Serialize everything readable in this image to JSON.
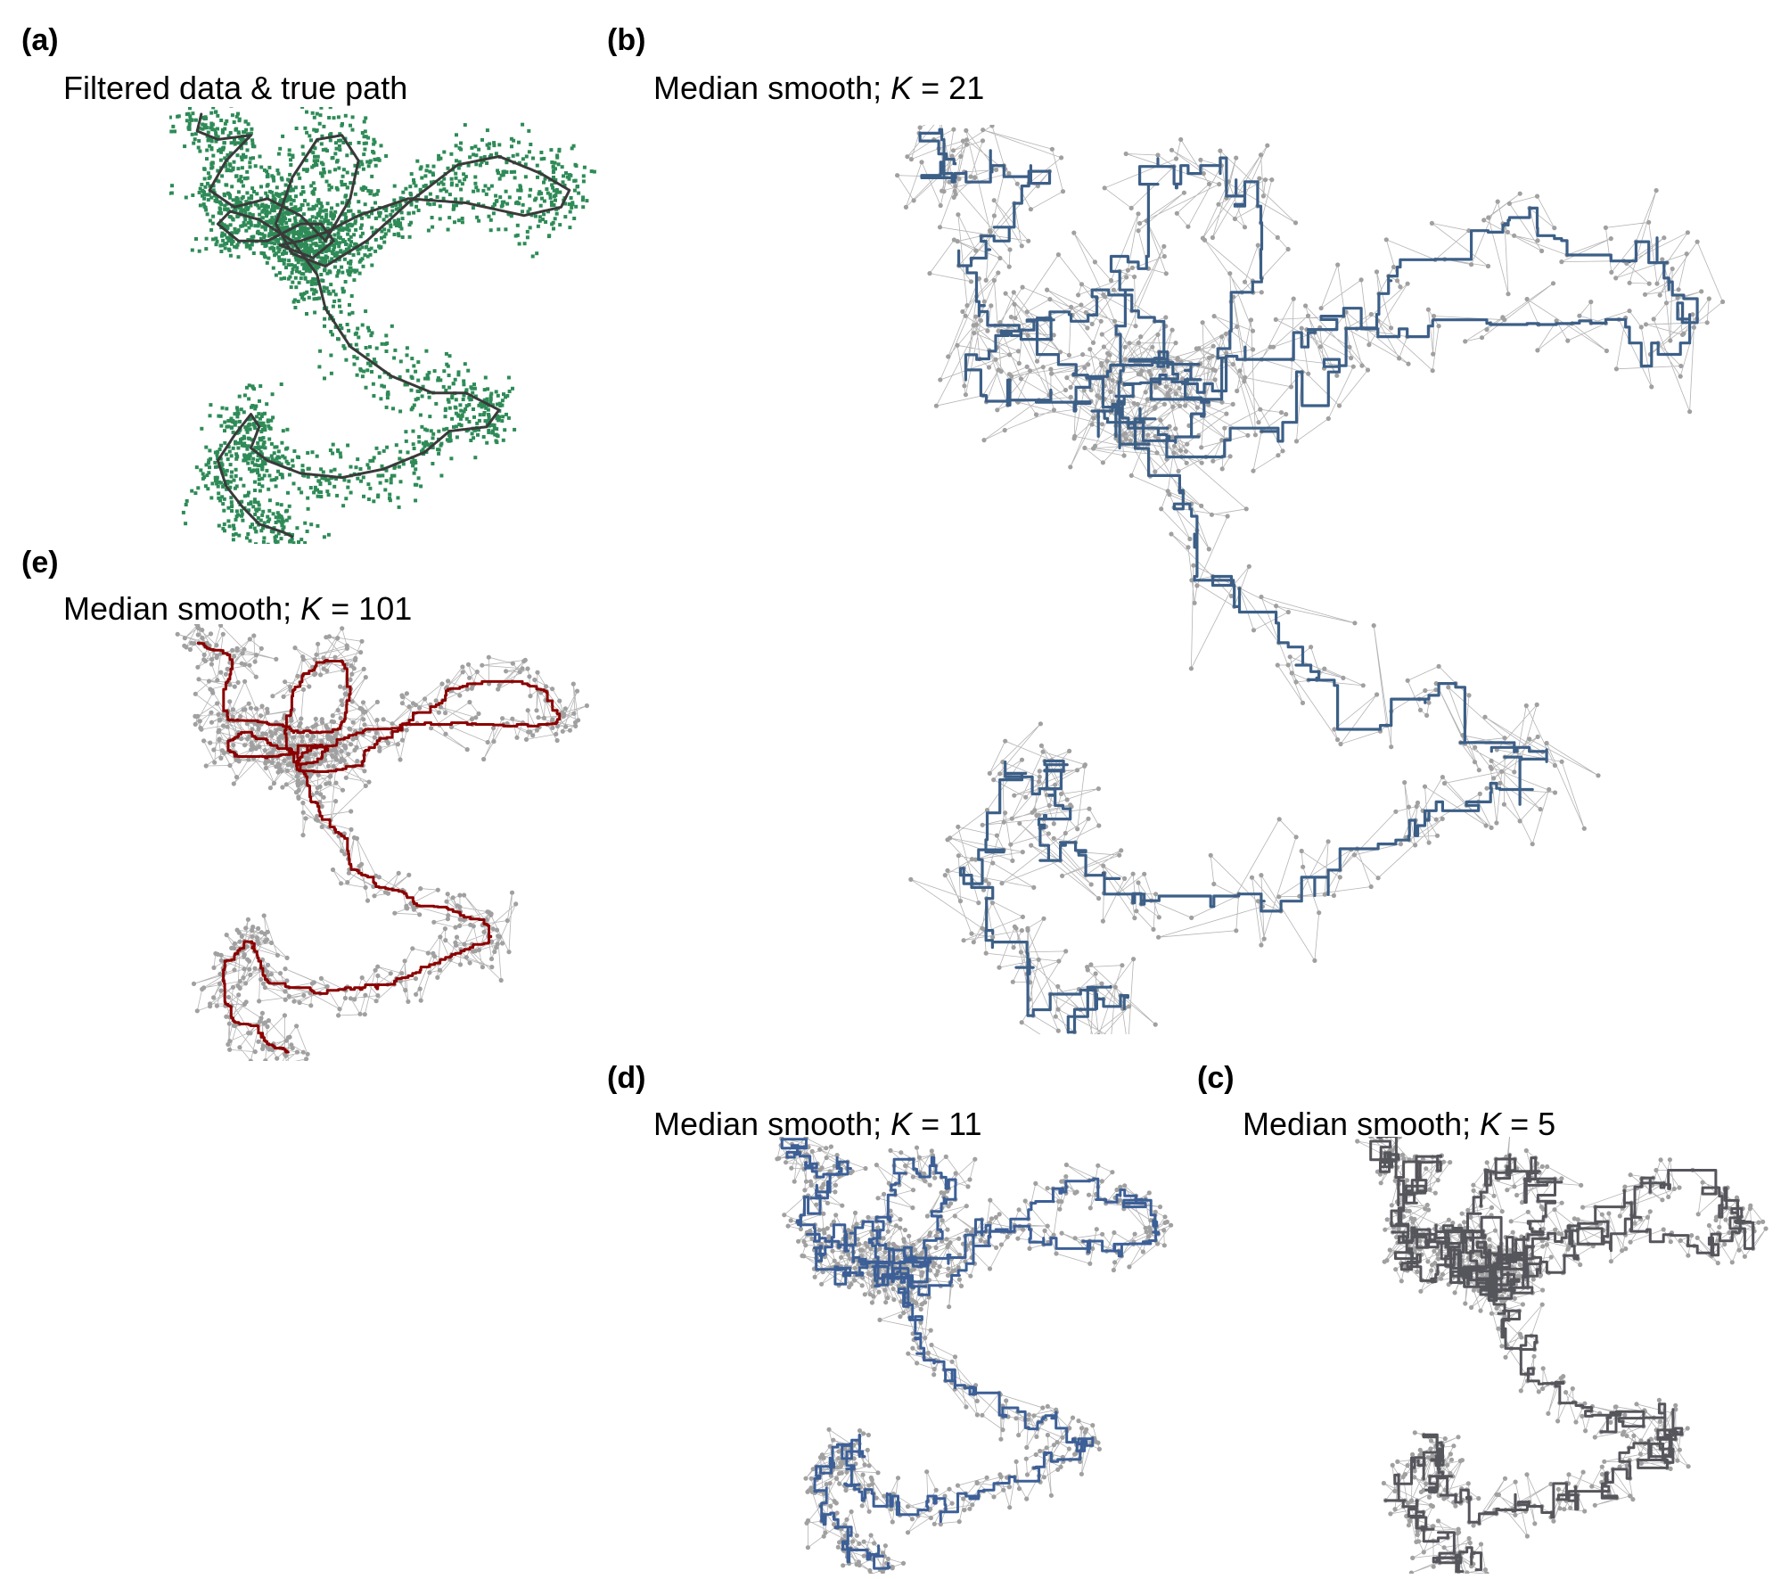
{
  "figure": {
    "panels": [
      {
        "id": "a",
        "label": "(a)",
        "title": "Filtered data & true path",
        "title_k": "",
        "title_k_value": "",
        "type": "true-path",
        "path_color": "#3a3a3a",
        "point_color": "#2e8b57"
      },
      {
        "id": "b",
        "label": "(b)",
        "title": "Median smooth; ",
        "title_k": "K",
        "title_k_value": " = 21",
        "type": "median-smooth",
        "k": 21,
        "path_color": "#3c5f87",
        "point_color": "#a0a0a0"
      },
      {
        "id": "e",
        "label": "(e)",
        "title": "Median smooth; ",
        "title_k": "K",
        "title_k_value": " = 101",
        "type": "median-smooth",
        "k": 101,
        "path_color": "#8b0000",
        "point_color": "#a0a0a0"
      },
      {
        "id": "d",
        "label": "(d)",
        "title": "Median smooth; ",
        "title_k": "K",
        "title_k_value": " = 11",
        "type": "median-smooth",
        "k": 11,
        "path_color": "#3c5f97",
        "point_color": "#a0a0a0"
      },
      {
        "id": "c",
        "label": "(c)",
        "title": "Median smooth; ",
        "title_k": "K",
        "title_k_value": " = 5",
        "type": "median-smooth",
        "k": 5,
        "path_color": "#55555c",
        "point_color": "#a0a0a0"
      }
    ]
  },
  "chart_data": {
    "type": "line",
    "xlabel": "",
    "ylabel": "",
    "axes_shown": false,
    "grid": false,
    "true_path": {
      "x": [
        0.06,
        0.05,
        0.1,
        0.18,
        0.12,
        0.08,
        0.14,
        0.22,
        0.3,
        0.36,
        0.42,
        0.44,
        0.4,
        0.34,
        0.28,
        0.24,
        0.28,
        0.36,
        0.46,
        0.56,
        0.68,
        0.78,
        0.88,
        0.95,
        0.93,
        0.84,
        0.7,
        0.56,
        0.44,
        0.36,
        0.3,
        0.25,
        0.33,
        0.38,
        0.35,
        0.3,
        0.22,
        0.15,
        0.1,
        0.13,
        0.2,
        0.28,
        0.34,
        0.36,
        0.42,
        0.52,
        0.62,
        0.7,
        0.78,
        0.75,
        0.66,
        0.6,
        0.5,
        0.4,
        0.3,
        0.22,
        0.18,
        0.2,
        0.18,
        0.14,
        0.1,
        0.12,
        0.16,
        0.2,
        0.26,
        0.28
      ],
      "y": [
        0.0,
        0.04,
        0.06,
        0.05,
        0.11,
        0.18,
        0.22,
        0.2,
        0.24,
        0.3,
        0.2,
        0.11,
        0.05,
        0.06,
        0.15,
        0.26,
        0.33,
        0.36,
        0.3,
        0.21,
        0.12,
        0.1,
        0.14,
        0.18,
        0.22,
        0.24,
        0.21,
        0.2,
        0.24,
        0.28,
        0.3,
        0.31,
        0.34,
        0.3,
        0.26,
        0.26,
        0.3,
        0.3,
        0.26,
        0.23,
        0.25,
        0.3,
        0.38,
        0.46,
        0.55,
        0.62,
        0.66,
        0.66,
        0.7,
        0.74,
        0.75,
        0.8,
        0.84,
        0.86,
        0.85,
        0.82,
        0.79,
        0.74,
        0.71,
        0.76,
        0.82,
        0.88,
        0.93,
        0.97,
        0.99,
        1.0
      ]
    },
    "series": [
      {
        "name": "",
        "panel": "a",
        "k": null
      },
      {
        "name": "",
        "panel": "b",
        "k": 21
      },
      {
        "name": "",
        "panel": "e",
        "k": 101
      },
      {
        "name": "",
        "panel": "d",
        "k": 11
      },
      {
        "name": "",
        "panel": "c",
        "k": 5
      }
    ]
  }
}
